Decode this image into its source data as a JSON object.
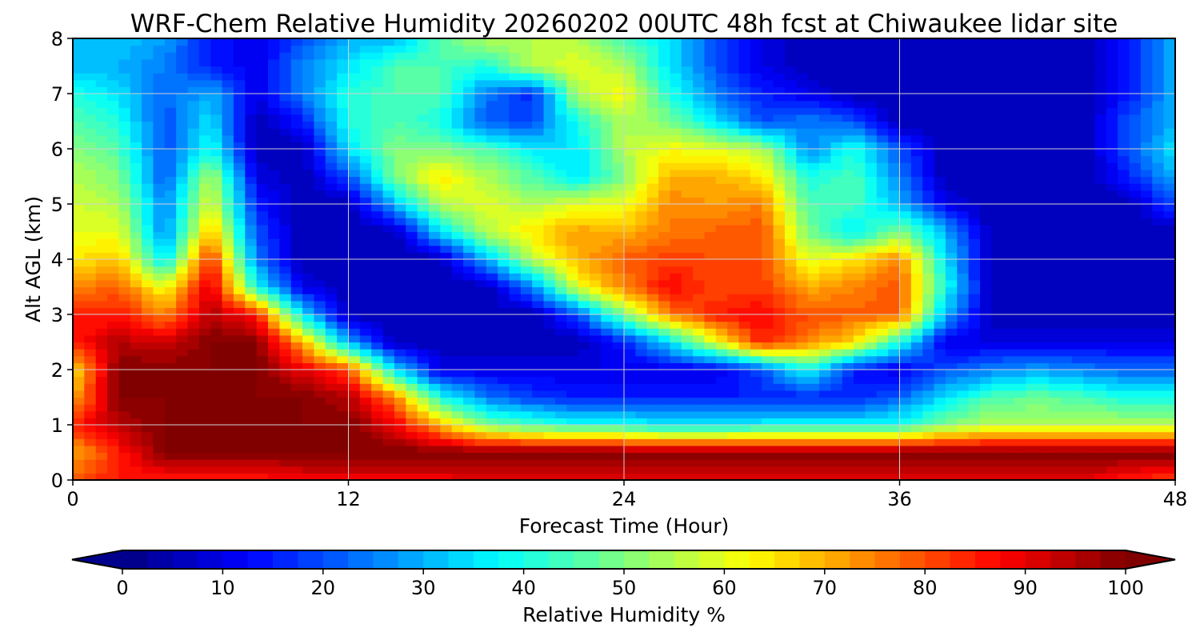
{
  "chart_data": {
    "type": "heatmap",
    "title": "WRF-Chem Relative Humidity 20260202 00UTC 48h fcst at Chiwaukee lidar site",
    "xlabel": "Forecast Time (Hour)",
    "ylabel": "Alt AGL (km)",
    "xlim": [
      0,
      48
    ],
    "ylim": [
      0,
      8
    ],
    "xticks": [
      "0",
      "12",
      "24",
      "36",
      "48"
    ],
    "yticks": [
      "0",
      "1",
      "2",
      "3",
      "4",
      "5",
      "6",
      "7",
      "8"
    ],
    "grid": true,
    "colormap": "jet",
    "colorbar": {
      "label": "Relative Humidity %",
      "range": [
        0,
        100
      ],
      "ticks": [
        "0",
        "10",
        "20",
        "30",
        "40",
        "50",
        "60",
        "70",
        "80",
        "90",
        "100"
      ],
      "extend": "both",
      "placement": "bottom"
    },
    "x": [
      0,
      2,
      4,
      6,
      8,
      10,
      12,
      14,
      16,
      18,
      20,
      22,
      24,
      26,
      28,
      30,
      32,
      34,
      36,
      38,
      40,
      42,
      44,
      46,
      48
    ],
    "y": [
      0,
      0.5,
      1,
      1.5,
      2,
      2.5,
      3,
      3.5,
      4,
      4.5,
      5,
      5.5,
      6,
      6.5,
      7,
      7.5,
      8
    ],
    "values": [
      [
        80,
        85,
        85,
        85,
        85,
        88,
        88,
        88,
        88,
        90,
        90,
        90,
        90,
        90,
        90,
        90,
        90,
        90,
        90,
        90,
        90,
        90,
        90,
        85,
        80
      ],
      [
        70,
        85,
        100,
        100,
        100,
        100,
        100,
        100,
        100,
        100,
        100,
        100,
        100,
        100,
        100,
        100,
        100,
        100,
        100,
        100,
        100,
        100,
        100,
        100,
        100
      ],
      [
        85,
        95,
        100,
        100,
        100,
        100,
        100,
        90,
        70,
        50,
        45,
        40,
        40,
        35,
        35,
        38,
        38,
        38,
        40,
        50,
        55,
        55,
        55,
        55,
        55
      ],
      [
        70,
        100,
        100,
        100,
        100,
        100,
        95,
        75,
        40,
        25,
        18,
        15,
        15,
        15,
        15,
        15,
        15,
        15,
        22,
        35,
        45,
        48,
        45,
        40,
        40
      ],
      [
        65,
        100,
        100,
        100,
        100,
        90,
        80,
        35,
        10,
        10,
        10,
        10,
        10,
        10,
        10,
        20,
        40,
        15,
        10,
        20,
        25,
        28,
        25,
        22,
        22
      ],
      [
        85,
        95,
        92,
        100,
        100,
        70,
        30,
        5,
        5,
        5,
        5,
        5,
        15,
        35,
        60,
        85,
        75,
        65,
        40,
        10,
        10,
        10,
        10,
        10,
        10
      ],
      [
        85,
        85,
        75,
        95,
        85,
        35,
        5,
        5,
        5,
        5,
        5,
        20,
        50,
        75,
        85,
        88,
        80,
        78,
        78,
        30,
        5,
        5,
        5,
        5,
        5
      ],
      [
        75,
        78,
        60,
        92,
        40,
        10,
        5,
        5,
        5,
        5,
        25,
        60,
        75,
        88,
        80,
        82,
        70,
        75,
        80,
        40,
        5,
        5,
        5,
        5,
        5
      ],
      [
        65,
        68,
        35,
        85,
        25,
        5,
        5,
        5,
        5,
        30,
        55,
        70,
        78,
        82,
        80,
        80,
        60,
        65,
        75,
        35,
        5,
        5,
        5,
        5,
        5
      ],
      [
        60,
        60,
        25,
        70,
        20,
        5,
        5,
        5,
        35,
        55,
        65,
        72,
        70,
        75,
        78,
        80,
        50,
        35,
        50,
        30,
        5,
        5,
        5,
        5,
        5
      ],
      [
        58,
        55,
        25,
        60,
        15,
        5,
        5,
        30,
        55,
        60,
        55,
        60,
        60,
        75,
        72,
        75,
        45,
        45,
        30,
        10,
        5,
        5,
        5,
        5,
        20
      ],
      [
        55,
        50,
        20,
        55,
        10,
        5,
        20,
        50,
        65,
        55,
        45,
        35,
        50,
        70,
        70,
        65,
        40,
        45,
        25,
        5,
        5,
        5,
        5,
        15,
        30
      ],
      [
        50,
        45,
        20,
        40,
        5,
        5,
        35,
        50,
        50,
        45,
        35,
        35,
        55,
        62,
        60,
        55,
        25,
        40,
        20,
        5,
        5,
        5,
        5,
        20,
        35
      ],
      [
        45,
        40,
        20,
        35,
        5,
        15,
        40,
        45,
        40,
        20,
        20,
        40,
        55,
        50,
        35,
        20,
        25,
        20,
        5,
        5,
        5,
        5,
        5,
        20,
        30
      ],
      [
        40,
        35,
        22,
        30,
        10,
        25,
        40,
        45,
        45,
        25,
        15,
        55,
        62,
        40,
        25,
        15,
        10,
        5,
        5,
        5,
        5,
        5,
        5,
        15,
        30
      ],
      [
        30,
        30,
        25,
        15,
        10,
        25,
        35,
        45,
        45,
        40,
        55,
        60,
        55,
        35,
        20,
        10,
        5,
        5,
        5,
        5,
        5,
        5,
        5,
        15,
        30
      ],
      [
        30,
        32,
        28,
        15,
        10,
        20,
        30,
        30,
        45,
        55,
        55,
        55,
        45,
        35,
        20,
        10,
        5,
        5,
        5,
        5,
        5,
        5,
        5,
        15,
        30
      ]
    ]
  }
}
